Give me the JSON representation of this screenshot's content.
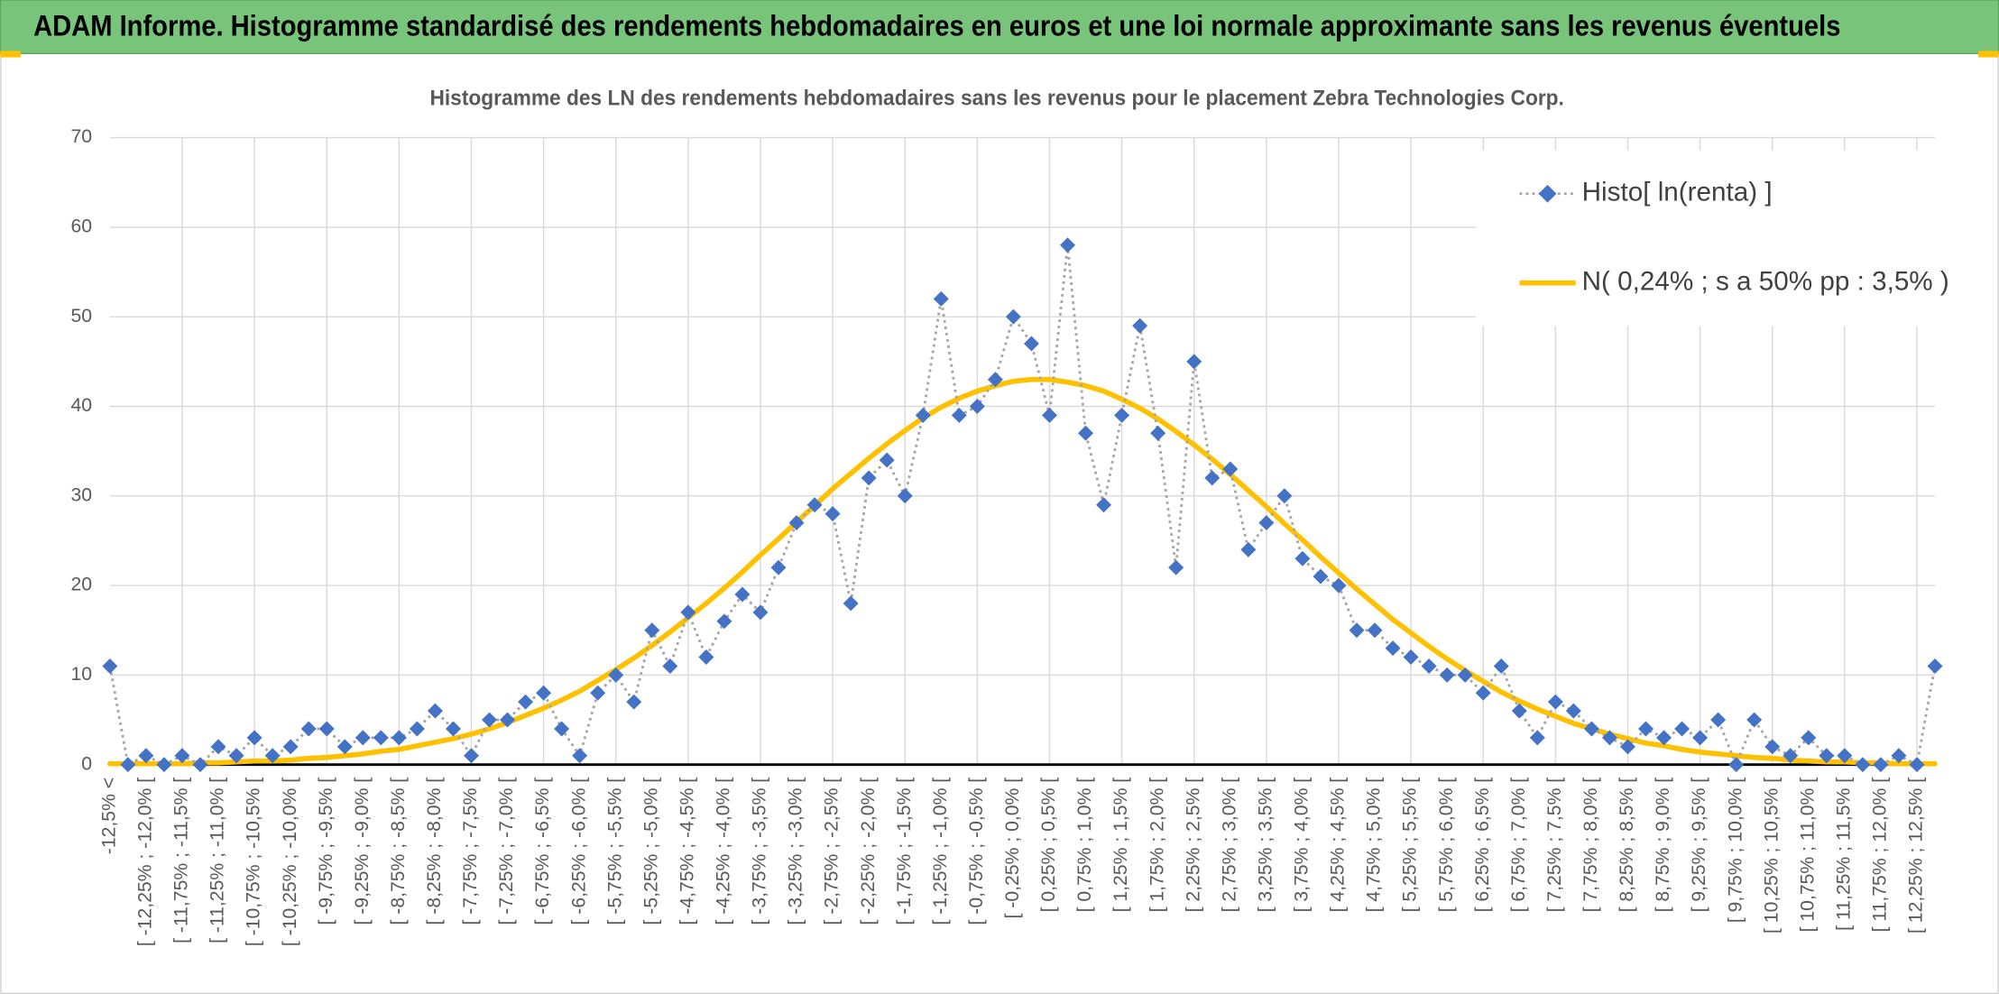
{
  "header": {
    "title": "ADAM Informe. Histogramme standardisé des rendements hebdomadaires en euros et une loi normale approximante sans les revenus éventuels"
  },
  "chart_data": {
    "type": "line",
    "title": "Histogramme des LN des rendements hebdomadaires sans les revenus pour le placement Zebra Technologies Corp.",
    "categories": [
      "-12,5% <",
      null,
      "[ -12,25% ; -12,0% [",
      null,
      "[ -11,75% ; -11,5% [",
      null,
      "[ -11,25% ; -11,0% [",
      null,
      "[ -10,75% ; -10,5% [",
      null,
      "[ -10,25% ; -10,0% [",
      null,
      "[ -9,75% ; -9,5% [",
      null,
      "[ -9,25% ; -9,0% [",
      null,
      "[ -8,75% ; -8,5% [",
      null,
      "[ -8,25% ; -8,0% [",
      null,
      "[ -7,75% ; -7,5% [",
      null,
      "[ -7,25% ; -7,0% [",
      null,
      "[ -6,75% ; -6,5% [",
      null,
      "[ -6,25% ; -6,0% [",
      null,
      "[ -5,75% ; -5,5% [",
      null,
      "[ -5,25% ; -5,0% [",
      null,
      "[ -4,75% ; -4,5% [",
      null,
      "[ -4,25% ; -4,0% [",
      null,
      "[ -3,75% ; -3,5% [",
      null,
      "[ -3,25% ; -3,0% [",
      null,
      "[ -2,75% ; -2,5% [",
      null,
      "[ -2,25% ; -2,0% [",
      null,
      "[ -1,75% ; -1,5% [",
      null,
      "[ -1,25% ; -1,0% [",
      null,
      "[ -0,75% ; -0,5% [",
      null,
      "[ -0,25% ; 0,0% [",
      null,
      "[ 0,25% ; 0,5% [",
      null,
      "[ 0,75% ; 1,0% [",
      null,
      "[ 1,25% ; 1,5% [",
      null,
      "[ 1,75% ; 2,0% [",
      null,
      "[ 2,25% ; 2,5% [",
      null,
      "[ 2,75% ; 3,0% [",
      null,
      "[ 3,25% ; 3,5% [",
      null,
      "[ 3,75% ; 4,0% [",
      null,
      "[ 4,25% ; 4,5% [",
      null,
      "[ 4,75% ; 5,0% [",
      null,
      "[ 5,25% ; 5,5% [",
      null,
      "[ 5,75% ; 6,0% [",
      null,
      "[ 6,25% ; 6,5% [",
      null,
      "[ 6,75% ; 7,0% [",
      null,
      "[ 7,25% ; 7,5% [",
      null,
      "[ 7,75% ; 8,0% [",
      null,
      "[ 8,25% ; 8,5% [",
      null,
      "[ 8,75% ; 9,0% [",
      null,
      "[ 9,25% ; 9,5% [",
      null,
      "[ 9,75% ; 10,0% [",
      null,
      "[ 10,25% ; 10,5% [",
      null,
      "[ 10,75% ; 11,0% [",
      null,
      "[ 11,25% ; 11,5% [",
      null,
      "[ 11,75% ; 12,0% [",
      null,
      "[ 12,25% ; 12,5% [",
      null
    ],
    "series": [
      {
        "name": "Histo[ ln(renta) ]",
        "color": "#4472c4",
        "line_color": "#a5a5a5",
        "values": [
          11,
          0,
          1,
          0,
          1,
          0,
          2,
          1,
          3,
          1,
          2,
          4,
          4,
          2,
          3,
          3,
          3,
          4,
          6,
          4,
          1,
          5,
          5,
          7,
          8,
          4,
          1,
          8,
          10,
          7,
          15,
          11,
          17,
          12,
          16,
          19,
          17,
          22,
          27,
          29,
          28,
          18,
          32,
          34,
          30,
          39,
          52,
          39,
          40,
          43,
          50,
          47,
          39,
          58,
          37,
          29,
          39,
          49,
          37,
          22,
          45,
          32,
          33,
          24,
          27,
          30,
          23,
          21,
          20,
          15,
          15,
          13,
          12,
          11,
          10,
          10,
          8,
          11,
          6,
          3,
          7,
          6,
          4,
          3,
          2,
          4,
          3,
          4,
          3,
          5,
          0,
          5,
          2,
          1,
          3,
          1,
          1,
          0,
          0,
          1,
          0,
          11
        ]
      },
      {
        "name": "N( 0,24% ; s a 50% pp : 3,5% )",
        "color": "#ffc000",
        "values": [
          0.1,
          0.1,
          0.1,
          0.1,
          0.1,
          0.2,
          0.2,
          0.3,
          0.4,
          0.4,
          0.5,
          0.7,
          0.8,
          1.0,
          1.2,
          1.5,
          1.7,
          2.1,
          2.5,
          2.9,
          3.4,
          4.0,
          4.7,
          5.5,
          6.3,
          7.2,
          8.2,
          9.4,
          10.6,
          11.9,
          13.3,
          14.8,
          16.4,
          18.0,
          19.7,
          21.5,
          23.4,
          25.2,
          27.1,
          28.9,
          30.8,
          32.5,
          34.2,
          35.8,
          37.3,
          38.7,
          39.9,
          40.9,
          41.7,
          42.3,
          42.8,
          43.0,
          43.0,
          42.7,
          42.3,
          41.7,
          40.8,
          39.8,
          38.6,
          37.2,
          35.7,
          34.1,
          32.4,
          30.6,
          28.8,
          26.9,
          25.1,
          23.2,
          21.4,
          19.6,
          17.9,
          16.2,
          14.7,
          13.2,
          11.8,
          10.5,
          9.3,
          8.1,
          7.1,
          6.2,
          5.4,
          4.6,
          4.0,
          3.4,
          2.9,
          2.4,
          2.1,
          1.7,
          1.4,
          1.2,
          1.0,
          0.8,
          0.7,
          0.5,
          0.4,
          0.3,
          0.3,
          0.2,
          0.2,
          0.1,
          0.1,
          0.1
        ]
      }
    ],
    "ylim": [
      0,
      70
    ],
    "yticks": [
      0,
      10,
      20,
      30,
      40,
      50,
      60,
      70
    ],
    "grid": true,
    "legend": "upper right"
  }
}
